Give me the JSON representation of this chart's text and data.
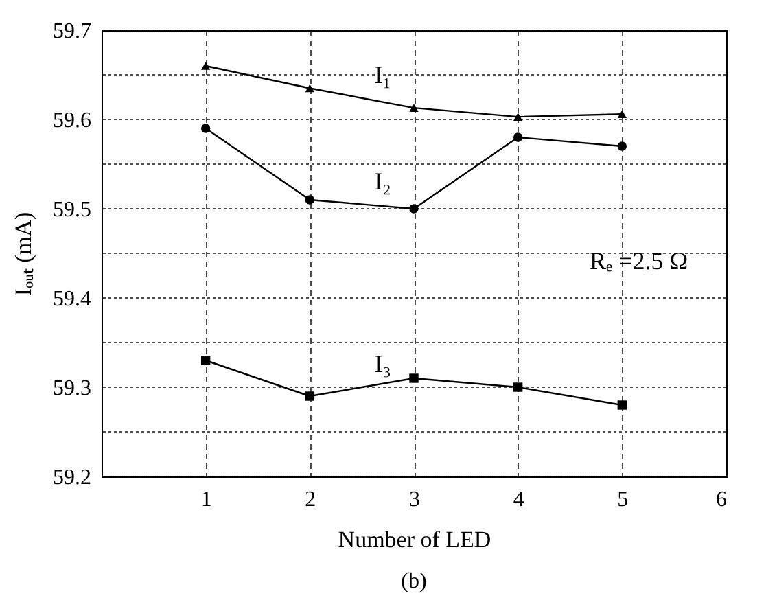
{
  "chart_data": {
    "type": "line",
    "xlabel": "Number of LED",
    "ylabel": "Iₒᵤₜ (mA)",
    "x": [
      1,
      2,
      3,
      4,
      5
    ],
    "series": [
      {
        "name": "I₁",
        "color": "#000000",
        "marker": "triangle",
        "values": [
          59.66,
          59.635,
          59.613,
          59.603,
          59.606
        ]
      },
      {
        "name": "I₂",
        "color": "#000000",
        "marker": "circle",
        "values": [
          59.59,
          59.51,
          59.5,
          59.58,
          59.57
        ]
      },
      {
        "name": "I₃",
        "color": "#000000",
        "marker": "square",
        "values": [
          59.33,
          59.29,
          59.31,
          59.3,
          59.28
        ]
      }
    ],
    "xlim": [
      0,
      6
    ],
    "xticks": [
      {
        "value": 0,
        "label": null
      },
      1,
      2,
      3,
      4,
      5,
      6
    ],
    "ylim": [
      59.2,
      59.7
    ],
    "yticks": [
      59.2,
      {
        "value": 59.25,
        "label": null
      },
      59.3,
      {
        "value": 59.35,
        "label": null
      },
      59.4,
      {
        "value": 59.45,
        "label": null
      },
      59.5,
      {
        "value": 59.55,
        "label": null
      },
      59.6,
      {
        "value": 59.65,
        "label": null
      },
      59.7
    ],
    "grid": true,
    "legend": false,
    "line_style": "solid",
    "annotations": [
      "Rₑ =2.5 Ω",
      "(b)"
    ]
  }
}
